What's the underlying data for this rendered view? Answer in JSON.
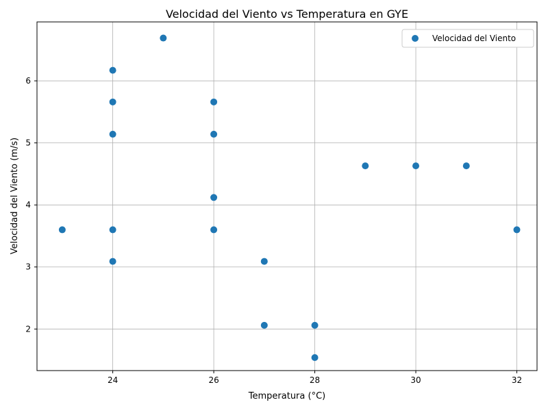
{
  "chart_data": {
    "type": "scatter",
    "title": "Velocidad del Viento vs Temperatura en GYE",
    "xlabel": "Temperatura (°C)",
    "ylabel": "Velocidad del Viento (m/s)",
    "xlim": [
      22.5,
      32.4
    ],
    "ylim": [
      1.33,
      6.95
    ],
    "xticks": [
      24,
      26,
      28,
      30,
      32
    ],
    "yticks": [
      2,
      3,
      4,
      5,
      6
    ],
    "grid": true,
    "legend_position": "top-right",
    "series": [
      {
        "name": "Velocidad del Viento",
        "color": "#1f77b4",
        "points": [
          {
            "x": 23,
            "y": 3.6
          },
          {
            "x": 24,
            "y": 6.17
          },
          {
            "x": 24,
            "y": 5.66
          },
          {
            "x": 24,
            "y": 5.14
          },
          {
            "x": 24,
            "y": 3.6
          },
          {
            "x": 24,
            "y": 3.09
          },
          {
            "x": 25,
            "y": 6.69
          },
          {
            "x": 26,
            "y": 5.66
          },
          {
            "x": 26,
            "y": 5.14
          },
          {
            "x": 26,
            "y": 4.12
          },
          {
            "x": 26,
            "y": 3.6
          },
          {
            "x": 27,
            "y": 3.09
          },
          {
            "x": 27,
            "y": 2.06
          },
          {
            "x": 28,
            "y": 2.06
          },
          {
            "x": 28,
            "y": 1.54
          },
          {
            "x": 29,
            "y": 4.63
          },
          {
            "x": 30,
            "y": 4.63
          },
          {
            "x": 31,
            "y": 4.63
          },
          {
            "x": 32,
            "y": 3.6
          }
        ]
      }
    ]
  }
}
